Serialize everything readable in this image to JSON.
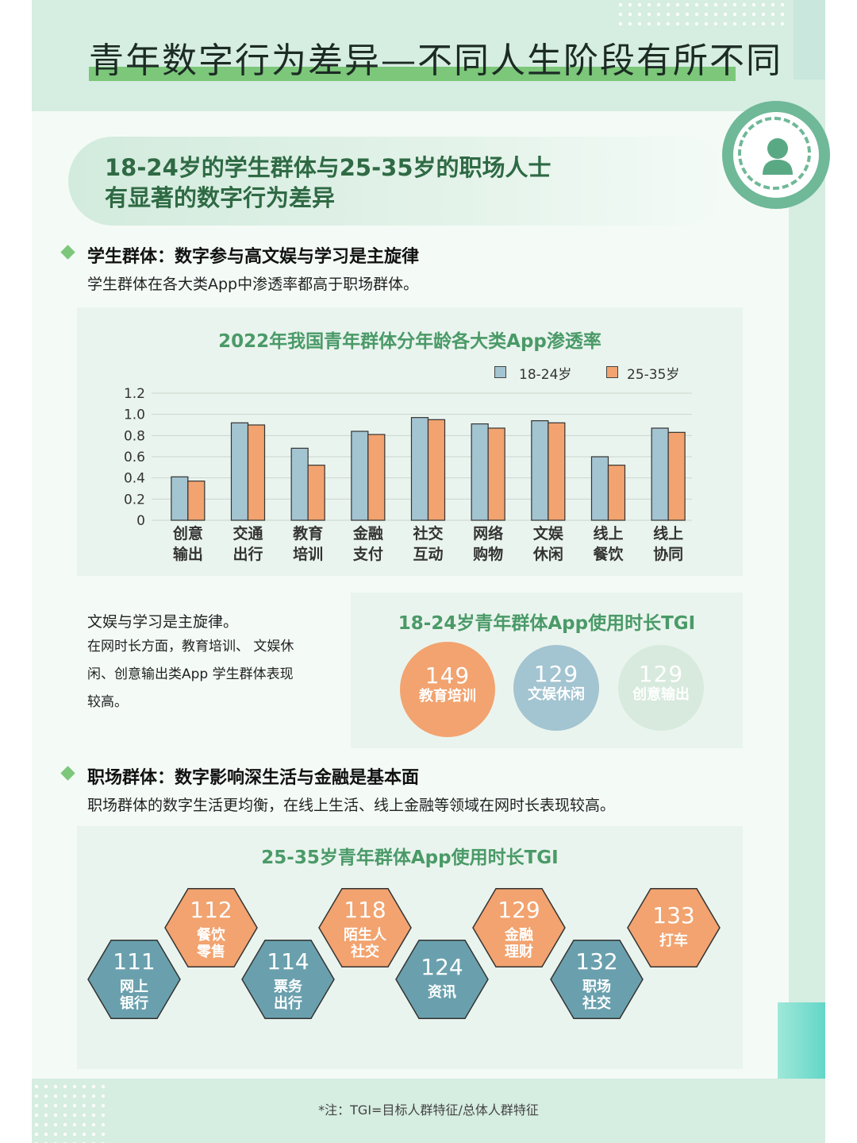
{
  "header": {
    "title": "青年数字行为差异—不同人生阶段有所不同"
  },
  "headline": {
    "line1": "18-24岁的学生群体与25-35岁的职场人士",
    "line2": "有显著的数字行为差异"
  },
  "section1": {
    "heading": "学生群体：数字参与高文娱与学习是主旋律",
    "desc": "学生群体在各大类App中渗透率都高于职场群体。"
  },
  "section2": {
    "heading": "职场群体：数字影响深生活与金融是基本面",
    "desc": "职场群体的数字生活更均衡，在线上生活、线上金融等领域在网时长表现较高。"
  },
  "text_block": {
    "line1": "文娱与学习是主旋律。",
    "line2": "在网时长方面，教育培训、 文娱休",
    "line3": "闲、创意输出类App 学生群体表现",
    "line4": "较高。"
  },
  "colors": {
    "blue": "#a3c4d1",
    "orange": "#f2a36f",
    "teal": "#6aa0ad",
    "green": "#4a9a68",
    "pale": "#d7eadd"
  },
  "icons": {
    "badge": "user-icon"
  },
  "chart_data": [
    {
      "type": "bar",
      "title": "2022年我国青年群体分年龄各大类App渗透率",
      "categories": [
        [
          "创意",
          "输出"
        ],
        [
          "交通",
          "出行"
        ],
        [
          "教育",
          "培训"
        ],
        [
          "金融",
          "支付"
        ],
        [
          "社交",
          "互动"
        ],
        [
          "网络",
          "购物"
        ],
        [
          "文娱",
          "休闲"
        ],
        [
          "线上",
          "餐饮"
        ],
        [
          "线上",
          "协同"
        ]
      ],
      "series": [
        {
          "name": "18-24岁",
          "color": "#a3c4d1",
          "values": [
            0.41,
            0.92,
            0.68,
            0.84,
            0.97,
            0.91,
            0.94,
            0.6,
            0.87
          ]
        },
        {
          "name": "25-35岁",
          "color": "#f2a36f",
          "values": [
            0.37,
            0.9,
            0.52,
            0.81,
            0.95,
            0.87,
            0.92,
            0.52,
            0.83
          ]
        }
      ],
      "ylim": [
        0,
        1.2
      ],
      "yticks": [
        "0",
        "0.2",
        "0.4",
        "0.6",
        "0.8",
        "1.0",
        "1.2"
      ],
      "grid": true,
      "legend": "top-right"
    },
    {
      "type": "bubble",
      "title": "18-24岁青年群体App使用时长TGI",
      "items": [
        {
          "value": "149",
          "label": "教育培训",
          "color": "#f2a36f"
        },
        {
          "value": "129",
          "label": "文娱休闲",
          "color": "#a3c4d1"
        },
        {
          "value": "129",
          "label": "创意输出",
          "color": "#d7eadd"
        }
      ]
    },
    {
      "type": "hexagon",
      "title": "25-35岁青年群体App使用时长TGI",
      "items": [
        {
          "value": "111",
          "label": [
            "网上",
            "银行"
          ],
          "color": "#6aa0ad"
        },
        {
          "value": "112",
          "label": [
            "餐饮",
            "零售"
          ],
          "color": "#f2a36f"
        },
        {
          "value": "114",
          "label": [
            "票务",
            "出行"
          ],
          "color": "#6aa0ad"
        },
        {
          "value": "118",
          "label": [
            "陌生人",
            "社交"
          ],
          "color": "#f2a36f"
        },
        {
          "value": "124",
          "label": [
            "资讯"
          ],
          "color": "#6aa0ad"
        },
        {
          "value": "129",
          "label": [
            "金融",
            "理财"
          ],
          "color": "#f2a36f"
        },
        {
          "value": "132",
          "label": [
            "职场",
            "社交"
          ],
          "color": "#6aa0ad"
        },
        {
          "value": "133",
          "label": [
            "打车"
          ],
          "color": "#f2a36f"
        }
      ]
    }
  ],
  "footer": {
    "note": "*注：TGI=目标人群特征/总体人群特征"
  }
}
